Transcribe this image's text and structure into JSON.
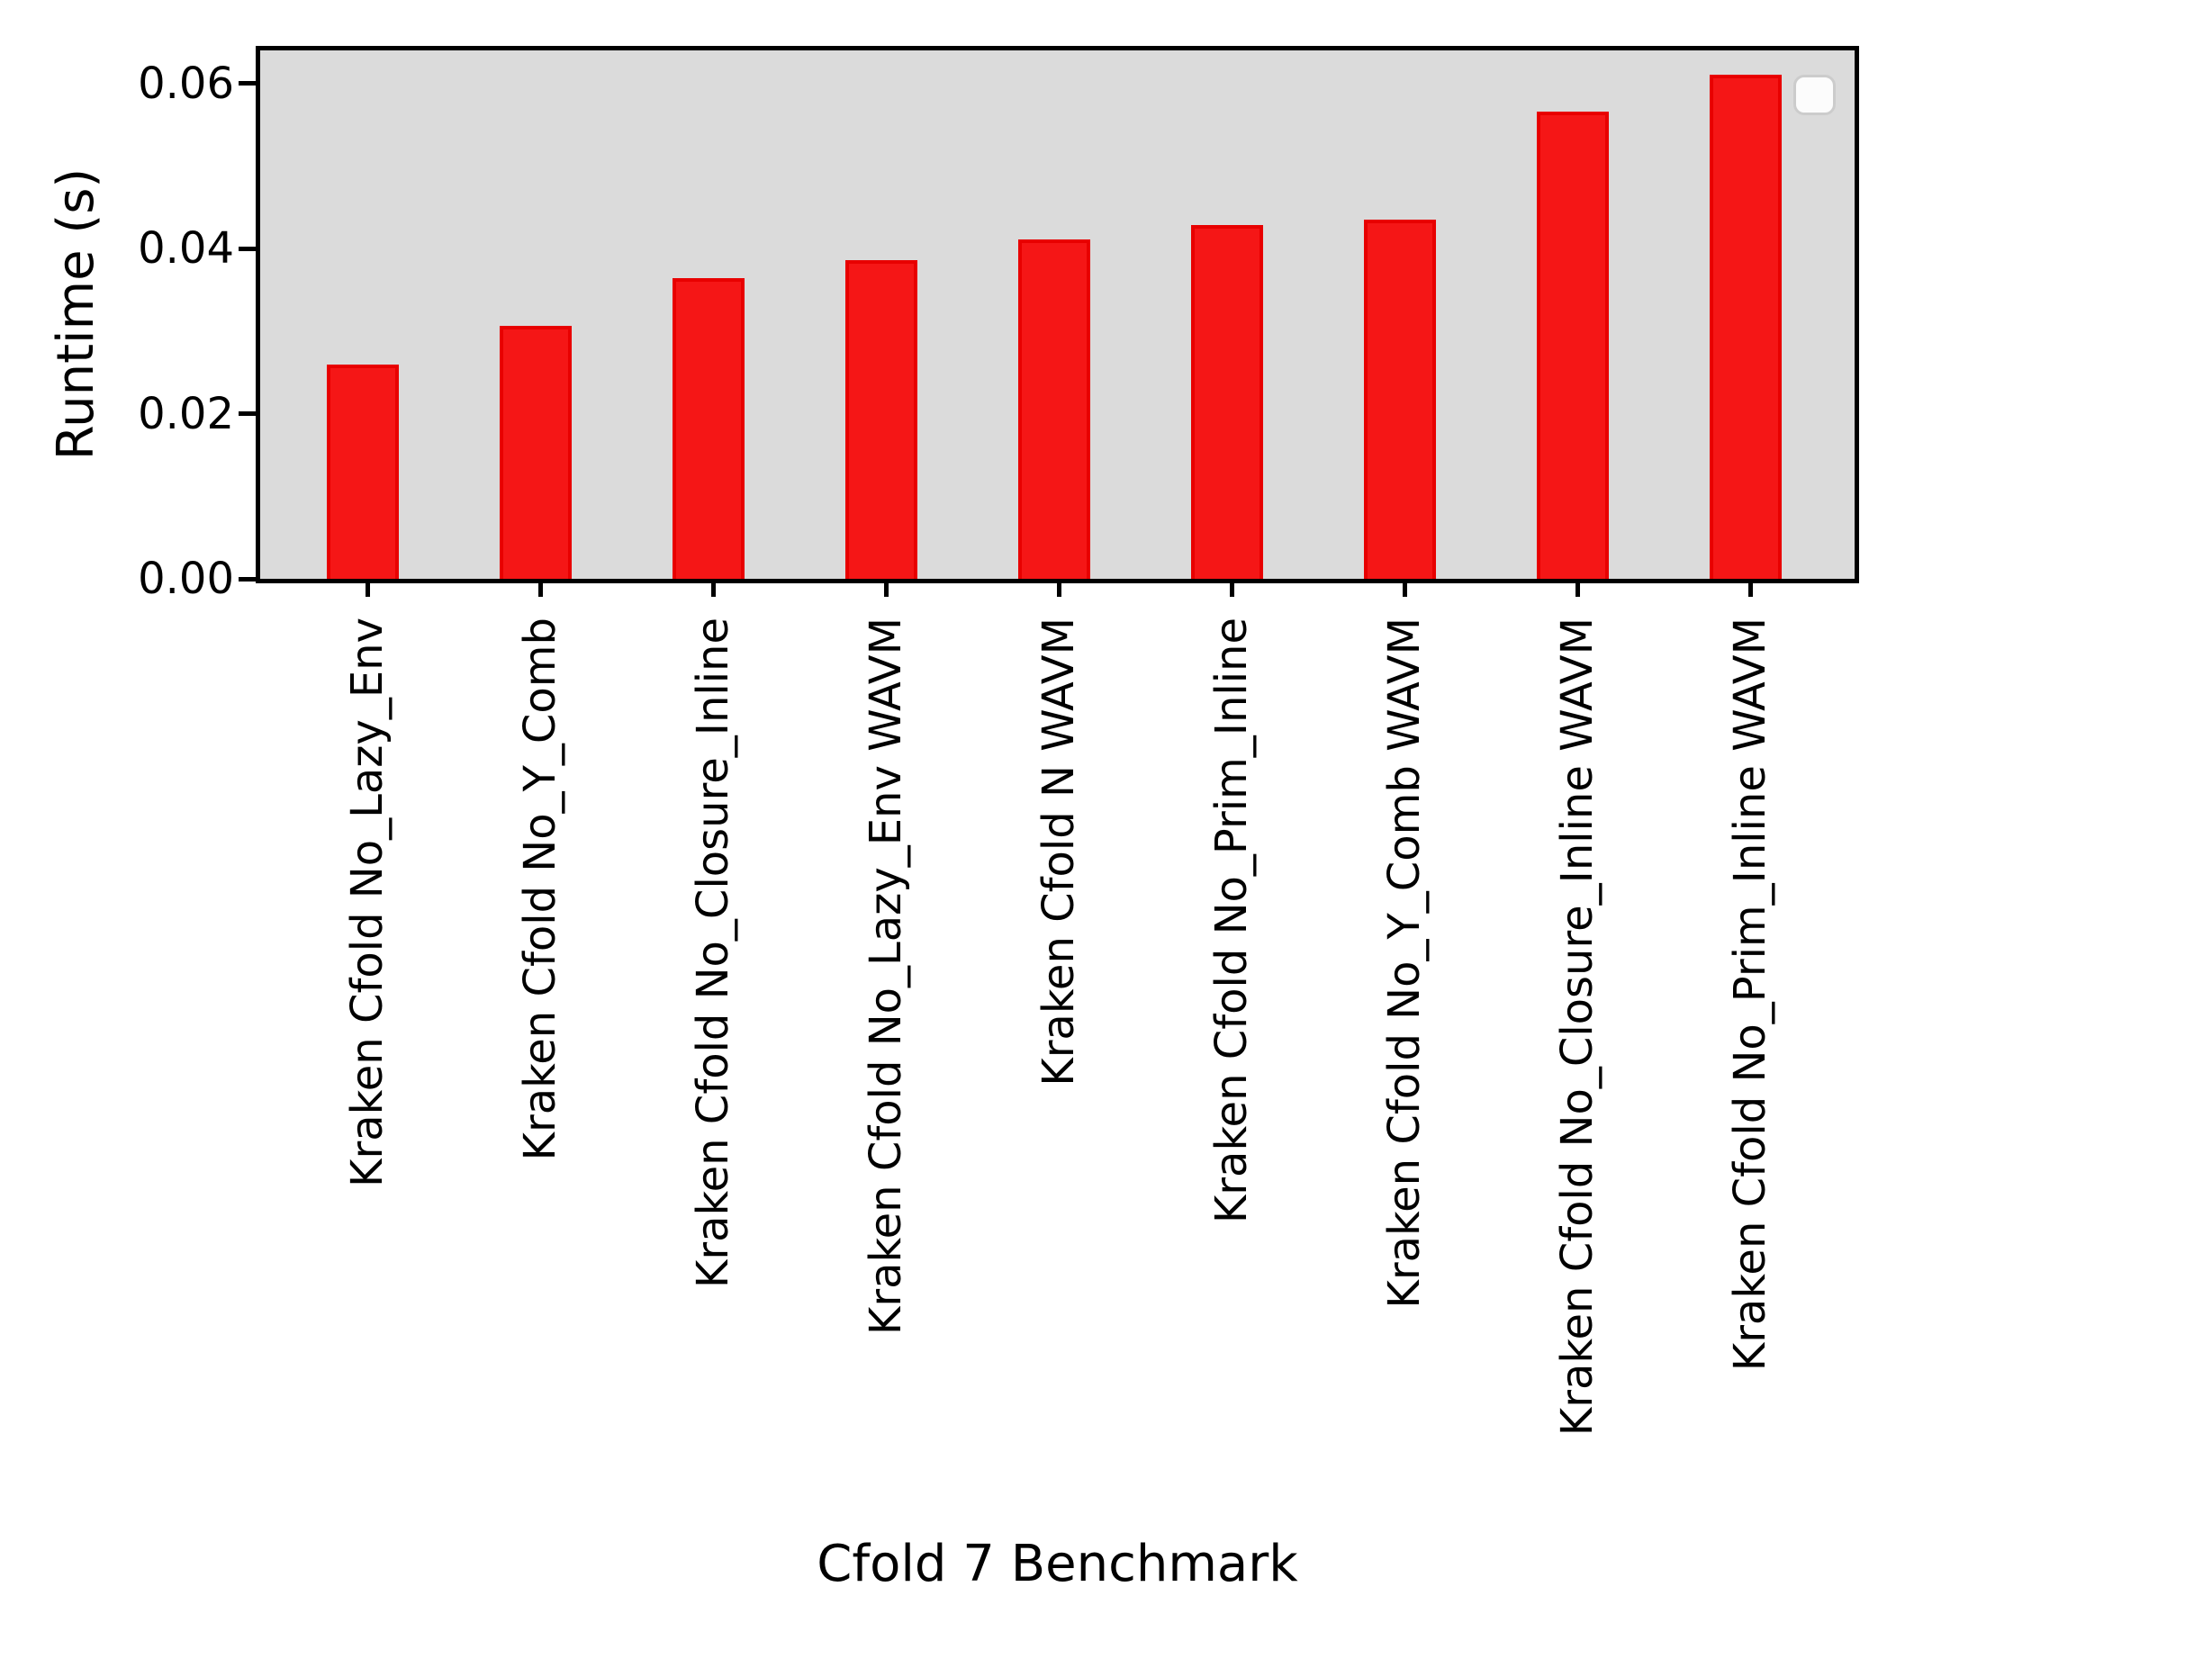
{
  "chart_data": {
    "type": "bar",
    "title": "",
    "xlabel": "Cfold 7 Benchmark",
    "ylabel": "Runtime (s)",
    "categories": [
      "Kraken Cfold No_Lazy_Env",
      "Kraken Cfold No_Y_Comb",
      "Kraken Cfold No_Closure_Inline",
      "Kraken Cfold No_Lazy_Env WAVM",
      "Kraken Cfold N WAVM",
      "Kraken Cfold No_Prim_Inline",
      "Kraken Cfold No_Y_Comb WAVM",
      "Kraken Cfold No_Closure_Inline WAVM",
      "Kraken Cfold No_Prim_Inline WAVM"
    ],
    "values": [
      0.026,
      0.0306,
      0.0364,
      0.0386,
      0.0411,
      0.0429,
      0.0435,
      0.0566,
      0.0611
    ],
    "yticks": [
      {
        "label": "0.00",
        "value": 0.0
      },
      {
        "label": "0.02",
        "value": 0.02
      },
      {
        "label": "0.04",
        "value": 0.04
      },
      {
        "label": "0.06",
        "value": 0.06
      }
    ],
    "ylim": [
      0,
      0.064
    ],
    "grid": false,
    "legend": {
      "visible": true,
      "entries": [],
      "position": "upper-right"
    },
    "colors": {
      "bar_fill": "#f51616",
      "bar_edge": "#e80000",
      "plot_background": "#dbdbdb",
      "figure_background": "#ffffff",
      "text": "#000000",
      "legend_border": "#cccccc"
    }
  }
}
